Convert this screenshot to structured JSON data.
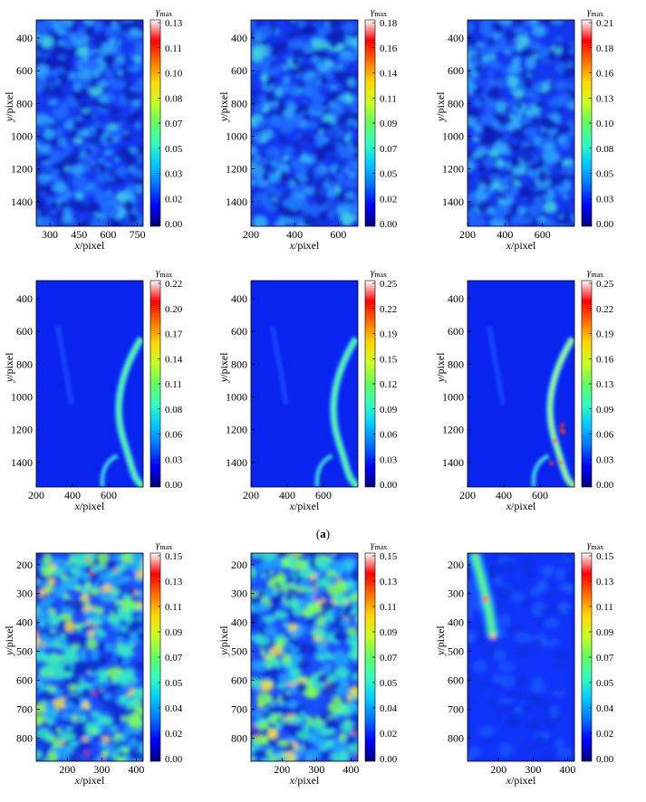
{
  "figure": {
    "caption_a": "a",
    "colorbar_symbol": "γ",
    "colorbar_subscript": "max",
    "colormap": [
      "#00007f",
      "#0000ff",
      "#0070ff",
      "#00c8ff",
      "#30ffc0",
      "#60ff60",
      "#c8ff20",
      "#ffd800",
      "#ff7000",
      "#ff0000",
      "#ffffff"
    ]
  },
  "chart_data": [
    {
      "type": "heatmap",
      "row": 1,
      "col": 1,
      "pattern": "speckle-low",
      "xlabel": "x/pixel",
      "ylabel": "y/pixel",
      "xlim": [
        230,
        780
      ],
      "ylim": [
        1550,
        290
      ],
      "xticks": [
        300,
        450,
        600,
        750
      ],
      "yticks": [
        400,
        600,
        800,
        1000,
        1200,
        1400
      ],
      "colorbar": {
        "ticks": [
          "0.13",
          "0.11",
          "0.10",
          "0.08",
          "0.07",
          "0.05",
          "0.03",
          "0.02",
          "0.00"
        ],
        "max": 0.13
      }
    },
    {
      "type": "heatmap",
      "row": 1,
      "col": 2,
      "pattern": "speckle-low",
      "xlabel": "x/pixel",
      "ylabel": "y/pixel",
      "xlim": [
        200,
        690
      ],
      "ylim": [
        1550,
        290
      ],
      "xticks": [
        200,
        400,
        600
      ],
      "yticks": [
        400,
        600,
        800,
        1000,
        1200,
        1400
      ],
      "colorbar": {
        "ticks": [
          "0.18",
          "0.16",
          "0.14",
          "0.11",
          "0.09",
          "0.07",
          "0.05",
          "0.02",
          "0.00"
        ],
        "max": 0.18
      }
    },
    {
      "type": "heatmap",
      "row": 1,
      "col": 3,
      "pattern": "speckle-low",
      "xlabel": "x/pixel",
      "ylabel": "y/pixel",
      "xlim": [
        200,
        770
      ],
      "ylim": [
        1550,
        290
      ],
      "xticks": [
        200,
        400,
        600
      ],
      "yticks": [
        400,
        600,
        800,
        1000,
        1200,
        1400
      ],
      "colorbar": {
        "ticks": [
          "0.21",
          "0.18",
          "0.16",
          "0.13",
          "0.10",
          "0.08",
          "0.05",
          "0.03",
          "0.00"
        ],
        "max": 0.21
      }
    },
    {
      "type": "heatmap",
      "row": 2,
      "col": 1,
      "pattern": "band",
      "xlabel": "x/pixel",
      "ylabel": "y/pixel",
      "xlim": [
        200,
        790
      ],
      "ylim": [
        1550,
        290
      ],
      "xticks": [
        200,
        400,
        600
      ],
      "yticks": [
        400,
        600,
        800,
        1000,
        1200,
        1400
      ],
      "colorbar": {
        "ticks": [
          "0.22",
          "0.20",
          "0.17",
          "0.14",
          "0.11",
          "0.08",
          "0.06",
          "0.03",
          "0.00"
        ],
        "max": 0.22
      }
    },
    {
      "type": "heatmap",
      "row": 2,
      "col": 2,
      "pattern": "band",
      "xlabel": "x/pixel",
      "ylabel": "y/pixel",
      "xlim": [
        200,
        790
      ],
      "ylim": [
        1550,
        290
      ],
      "xticks": [
        200,
        400,
        600
      ],
      "yticks": [
        400,
        600,
        800,
        1000,
        1200,
        1400
      ],
      "colorbar": {
        "ticks": [
          "0.25",
          "0.22",
          "0.19",
          "0.15",
          "0.12",
          "0.09",
          "0.06",
          "0.03",
          "0.00"
        ],
        "max": 0.25
      }
    },
    {
      "type": "heatmap",
      "row": 2,
      "col": 3,
      "pattern": "band-strong",
      "xlabel": "x/pixel",
      "ylabel": "y/pixel",
      "xlim": [
        200,
        790
      ],
      "ylim": [
        1550,
        290
      ],
      "xticks": [
        200,
        400,
        600
      ],
      "yticks": [
        400,
        600,
        800,
        1000,
        1200,
        1400
      ],
      "colorbar": {
        "ticks": [
          "0.25",
          "0.22",
          "0.19",
          "0.16",
          "0.13",
          "0.09",
          "0.06",
          "0.03",
          "0.00"
        ],
        "max": 0.25
      }
    },
    {
      "type": "heatmap",
      "row": 3,
      "col": 1,
      "pattern": "speckle-high",
      "xlabel": "x/pixel",
      "ylabel": "y/pixel",
      "xlim": [
        110,
        420
      ],
      "ylim": [
        880,
        160
      ],
      "xticks": [
        200,
        300,
        400
      ],
      "yticks": [
        200,
        300,
        400,
        500,
        600,
        700,
        800
      ],
      "colorbar": {
        "ticks": [
          "0.15",
          "0.13",
          "0.11",
          "0.09",
          "0.07",
          "0.05",
          "0.04",
          "0.02",
          "0.00"
        ],
        "max": 0.15
      }
    },
    {
      "type": "heatmap",
      "row": 3,
      "col": 2,
      "pattern": "speckle-high",
      "xlabel": "x/pixel",
      "ylabel": "y/pixel",
      "xlim": [
        110,
        420
      ],
      "ylim": [
        880,
        160
      ],
      "xticks": [
        200,
        300,
        400
      ],
      "yticks": [
        200,
        300,
        400,
        500,
        600,
        700,
        800
      ],
      "colorbar": {
        "ticks": [
          "0.15",
          "0.13",
          "0.11",
          "0.09",
          "0.07",
          "0.05",
          "0.04",
          "0.02",
          "0.00"
        ],
        "max": 0.15
      }
    },
    {
      "type": "heatmap",
      "row": 3,
      "col": 3,
      "pattern": "crack-top",
      "xlabel": "x/pixel",
      "ylabel": "y/pixel",
      "xlim": [
        110,
        420
      ],
      "ylim": [
        880,
        160
      ],
      "xticks": [
        200,
        300,
        400
      ],
      "yticks": [
        200,
        300,
        400,
        500,
        600,
        700,
        800
      ],
      "colorbar": {
        "ticks": [
          "0.15",
          "0.13",
          "0.11",
          "0.09",
          "0.07",
          "0.05",
          "0.04",
          "0.02",
          "0.00"
        ],
        "max": 0.15
      }
    }
  ]
}
